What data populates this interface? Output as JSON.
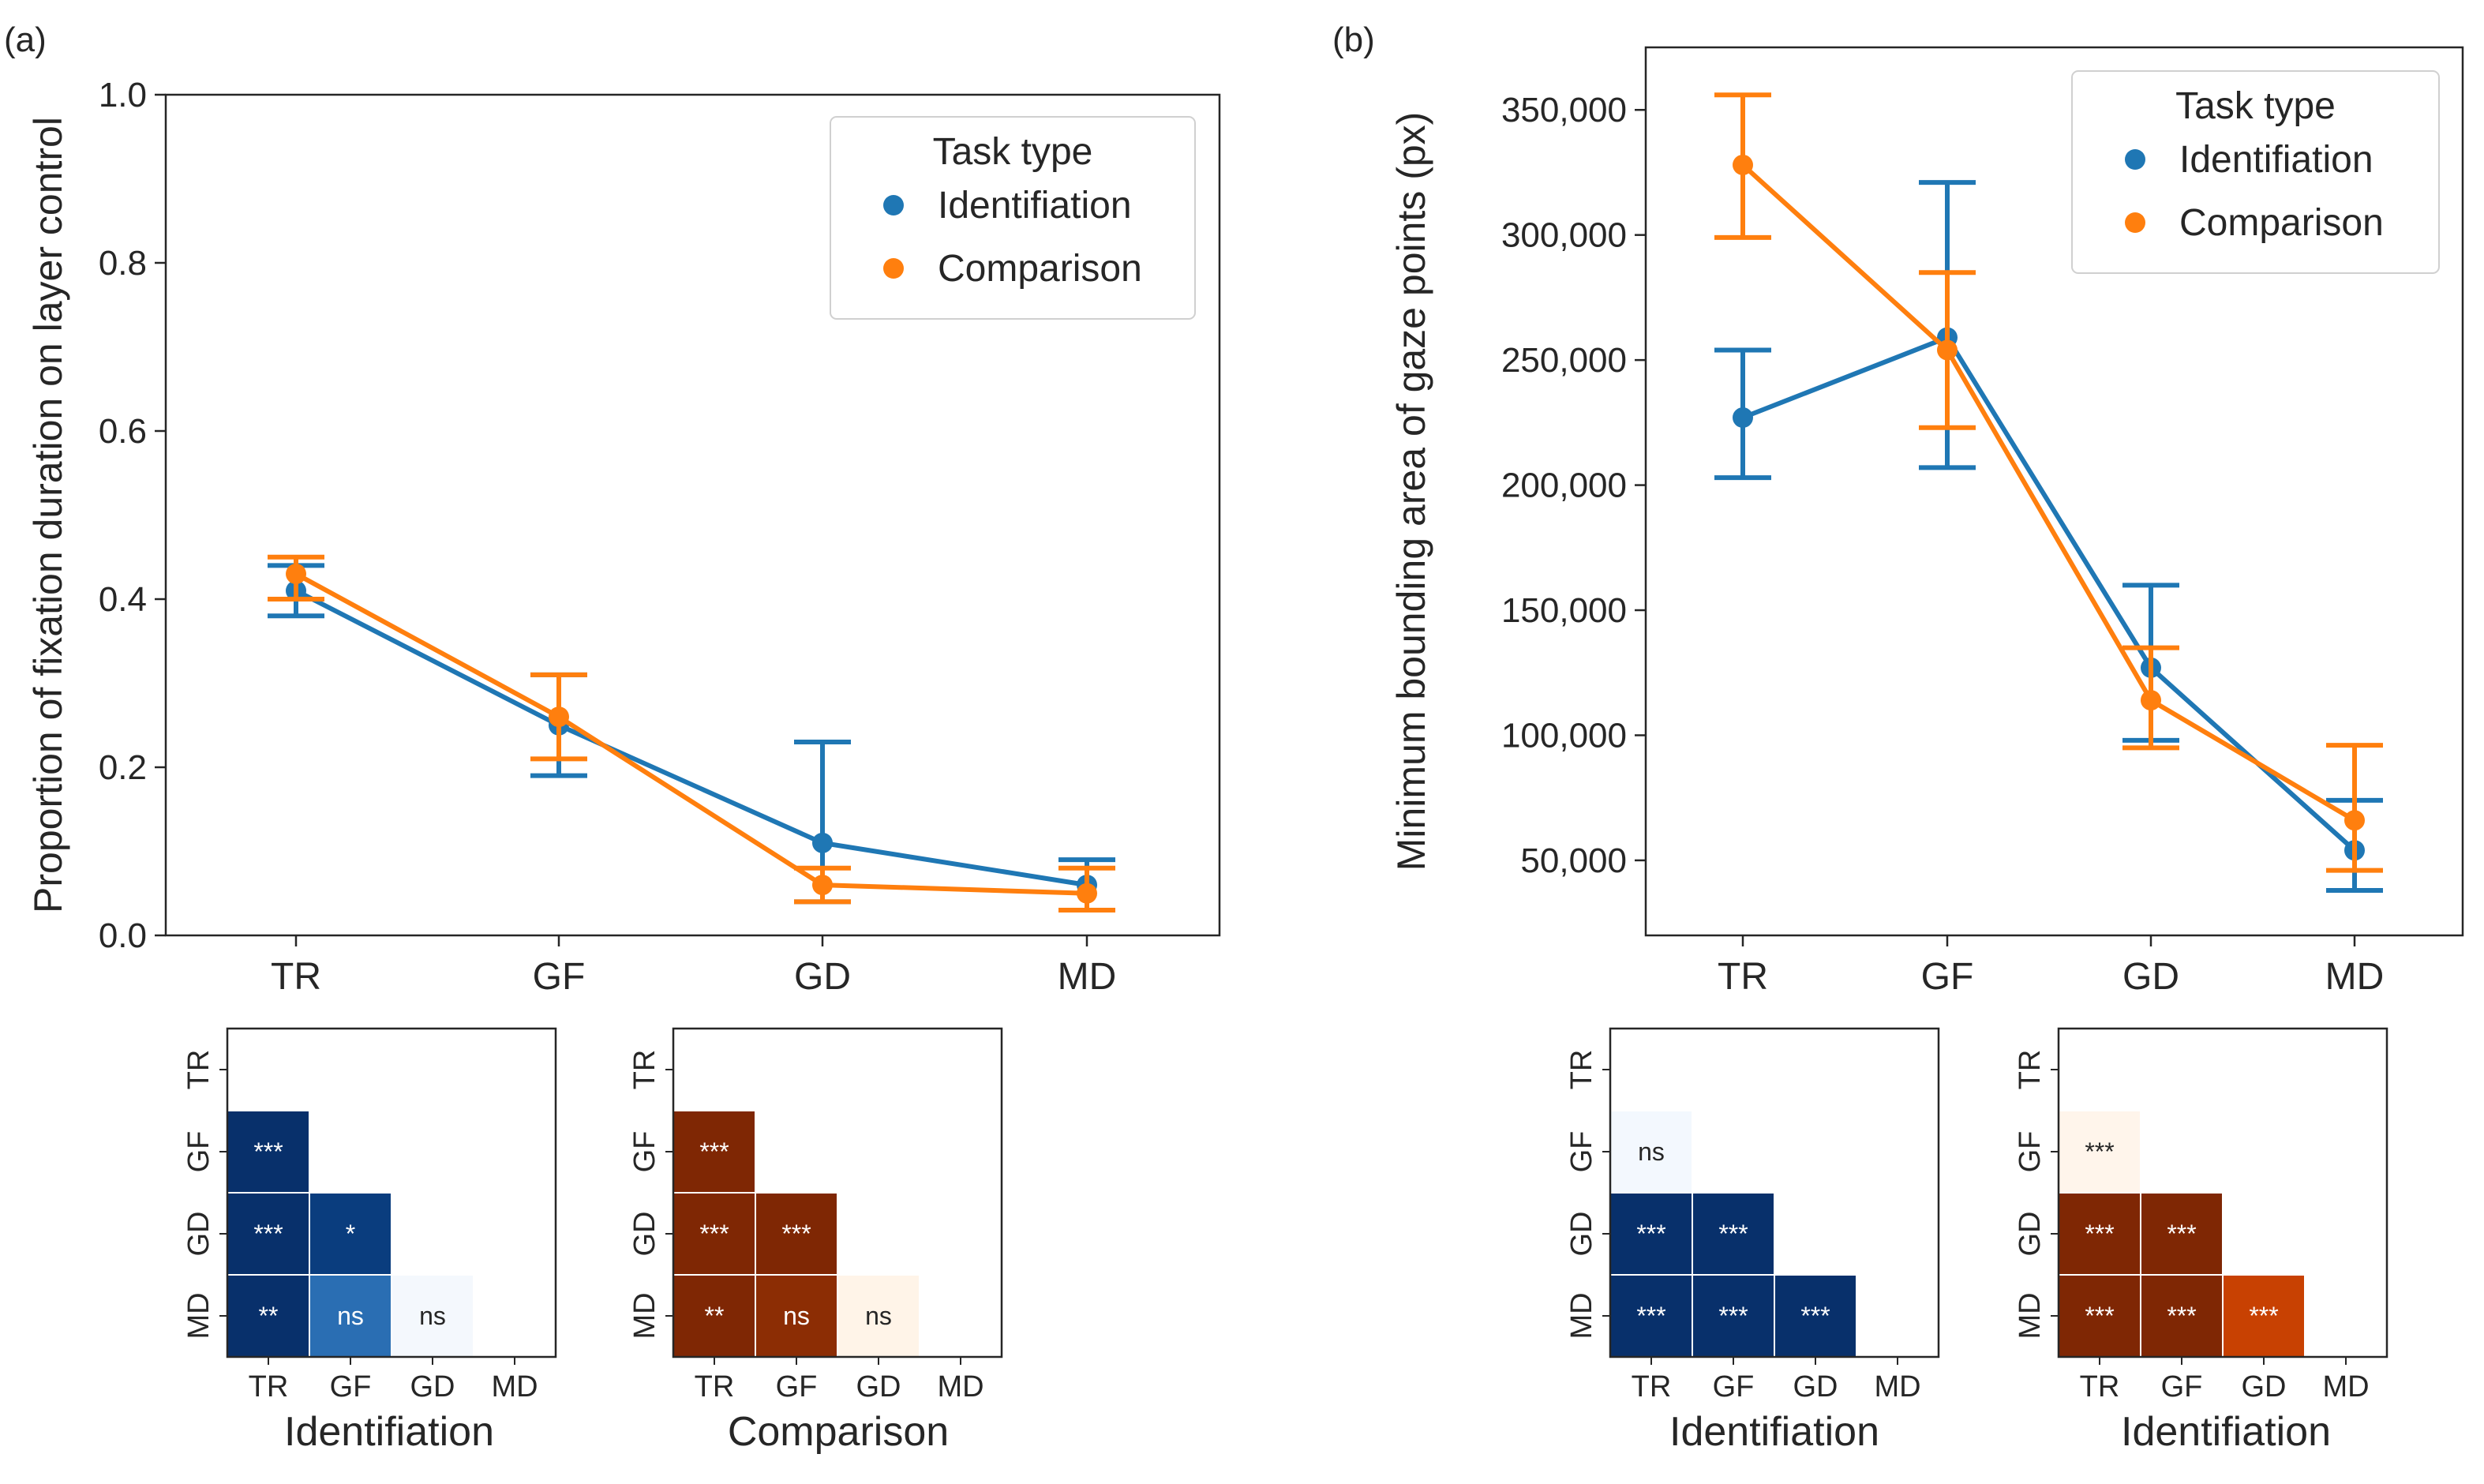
{
  "chart_data": [
    {
      "type": "line",
      "panel_label": "(a)",
      "title": "",
      "xlabel": "",
      "ylabel": "Proportion of fixation duration on layer control",
      "categories": [
        "TR",
        "GF",
        "GD",
        "MD"
      ],
      "ylim": [
        0.0,
        1.0
      ],
      "yticks": [
        0.0,
        0.2,
        0.4,
        0.6,
        0.8,
        1.0
      ],
      "ytick_labels": [
        "0.0",
        "0.2",
        "0.4",
        "0.6",
        "0.8",
        "1.0"
      ],
      "legend": {
        "title": "Task type",
        "position": "top-right"
      },
      "series": [
        {
          "name": "Identifiation",
          "color": "#1f77b4",
          "values": [
            0.41,
            0.25,
            0.11,
            0.06
          ],
          "err_low": [
            0.38,
            0.19,
            0.04,
            0.03
          ],
          "err_high": [
            0.44,
            0.31,
            0.23,
            0.09
          ]
        },
        {
          "name": "Comparison",
          "color": "#ff7f0e",
          "values": [
            0.43,
            0.26,
            0.06,
            0.05
          ],
          "err_low": [
            0.4,
            0.21,
            0.04,
            0.03
          ],
          "err_high": [
            0.45,
            0.31,
            0.08,
            0.08
          ]
        }
      ]
    },
    {
      "type": "line",
      "panel_label": "(b)",
      "title": "",
      "xlabel": "",
      "ylabel": "Minimum bounding area of gaze points (px)",
      "categories": [
        "TR",
        "GF",
        "GD",
        "MD"
      ],
      "ylim": [
        20000,
        375000
      ],
      "yticks": [
        50000,
        100000,
        150000,
        200000,
        250000,
        300000,
        350000
      ],
      "ytick_labels": [
        "50,000",
        "100,000",
        "150,000",
        "200,000",
        "250,000",
        "300,000",
        "350,000"
      ],
      "legend": {
        "title": "Task type",
        "position": "top-right"
      },
      "series": [
        {
          "name": "Identifiation",
          "color": "#1f77b4",
          "values": [
            227000,
            259000,
            127000,
            54000
          ],
          "err_low": [
            203000,
            207000,
            98000,
            38000
          ],
          "err_high": [
            254000,
            321000,
            160000,
            74000
          ]
        },
        {
          "name": "Comparison",
          "color": "#ff7f0e",
          "values": [
            328000,
            254000,
            114000,
            66000
          ],
          "err_low": [
            299000,
            223000,
            95000,
            46000
          ],
          "err_high": [
            356000,
            285000,
            135000,
            96000
          ]
        }
      ]
    },
    {
      "type": "heatmap",
      "xlabel": "Identifiation",
      "categories": [
        "TR",
        "GF",
        "GD",
        "MD"
      ],
      "palette": "blue",
      "cells": [
        {
          "row": 1,
          "col": 0,
          "label": "***",
          "color": "#08306b",
          "text_color": "#ffffff"
        },
        {
          "row": 2,
          "col": 0,
          "label": "***",
          "color": "#08306b",
          "text_color": "#ffffff"
        },
        {
          "row": 2,
          "col": 1,
          "label": "*",
          "color": "#0a3d7e",
          "text_color": "#ffffff"
        },
        {
          "row": 3,
          "col": 0,
          "label": "**",
          "color": "#08306b",
          "text_color": "#ffffff"
        },
        {
          "row": 3,
          "col": 1,
          "label": "ns",
          "color": "#2a6eb3",
          "text_color": "#ffffff"
        },
        {
          "row": 3,
          "col": 2,
          "label": "ns",
          "color": "#f4f8fd",
          "text_color": "#262626"
        }
      ]
    },
    {
      "type": "heatmap",
      "xlabel": "Comparison",
      "categories": [
        "TR",
        "GF",
        "GD",
        "MD"
      ],
      "palette": "orange",
      "cells": [
        {
          "row": 1,
          "col": 0,
          "label": "***",
          "color": "#7f2704",
          "text_color": "#ffffff"
        },
        {
          "row": 2,
          "col": 0,
          "label": "***",
          "color": "#7f2704",
          "text_color": "#ffffff"
        },
        {
          "row": 2,
          "col": 1,
          "label": "***",
          "color": "#7f2704",
          "text_color": "#ffffff"
        },
        {
          "row": 3,
          "col": 0,
          "label": "**",
          "color": "#7f2704",
          "text_color": "#ffffff"
        },
        {
          "row": 3,
          "col": 1,
          "label": "ns",
          "color": "#8c2d04",
          "text_color": "#ffffff"
        },
        {
          "row": 3,
          "col": 2,
          "label": "ns",
          "color": "#fff4e8",
          "text_color": "#262626"
        }
      ]
    },
    {
      "type": "heatmap",
      "xlabel": "Identifiation",
      "categories": [
        "TR",
        "GF",
        "GD",
        "MD"
      ],
      "palette": "blue",
      "cells": [
        {
          "row": 1,
          "col": 0,
          "label": "ns",
          "color": "#f3f8fe",
          "text_color": "#262626"
        },
        {
          "row": 2,
          "col": 0,
          "label": "***",
          "color": "#08306b",
          "text_color": "#ffffff"
        },
        {
          "row": 2,
          "col": 1,
          "label": "***",
          "color": "#08306b",
          "text_color": "#ffffff"
        },
        {
          "row": 3,
          "col": 0,
          "label": "***",
          "color": "#08306b",
          "text_color": "#ffffff"
        },
        {
          "row": 3,
          "col": 1,
          "label": "***",
          "color": "#08306b",
          "text_color": "#ffffff"
        },
        {
          "row": 3,
          "col": 2,
          "label": "***",
          "color": "#08306b",
          "text_color": "#ffffff"
        }
      ]
    },
    {
      "type": "heatmap",
      "xlabel": "Identifiation",
      "categories": [
        "TR",
        "GF",
        "GD",
        "MD"
      ],
      "palette": "orange",
      "cells": [
        {
          "row": 1,
          "col": 0,
          "label": "***",
          "color": "#fff5eb",
          "text_color": "#262626"
        },
        {
          "row": 2,
          "col": 0,
          "label": "***",
          "color": "#7f2704",
          "text_color": "#ffffff"
        },
        {
          "row": 2,
          "col": 1,
          "label": "***",
          "color": "#7f2704",
          "text_color": "#ffffff"
        },
        {
          "row": 3,
          "col": 0,
          "label": "***",
          "color": "#7f2704",
          "text_color": "#ffffff"
        },
        {
          "row": 3,
          "col": 1,
          "label": "***",
          "color": "#7f2704",
          "text_color": "#ffffff"
        },
        {
          "row": 3,
          "col": 2,
          "label": "***",
          "color": "#c84102",
          "text_color": "#ffffff"
        }
      ]
    }
  ]
}
